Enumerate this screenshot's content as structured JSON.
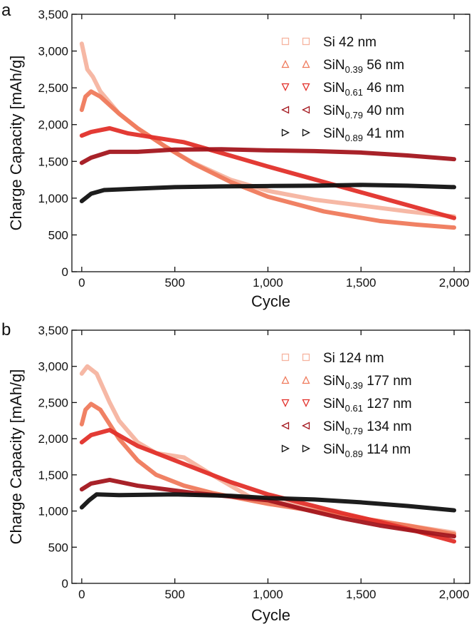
{
  "chart_data": [
    {
      "panel_label": "a",
      "type": "scatter",
      "xlabel": "Cycle",
      "ylabel": "Charge Capacity [mAh/g]",
      "xlim": [
        -53,
        2084
      ],
      "ylim": [
        0,
        3500
      ],
      "xticks": [
        "0",
        "500",
        "1,000",
        "1,500",
        "2,000"
      ],
      "xtick_values": [
        0,
        500,
        1000,
        1500,
        2000
      ],
      "yticks": [
        "0",
        "500",
        "1,000",
        "1,500",
        "2,000",
        "2,500",
        "3,000",
        "3,500"
      ],
      "ytick_values": [
        0,
        500,
        1000,
        1500,
        2000,
        2500,
        3000,
        3500
      ],
      "legend_position": "top-right",
      "series": [
        {
          "name": "Si",
          "sub": "",
          "size": "42 nm",
          "marker": "square",
          "color": "#f6b4a0",
          "x": [
            0,
            30,
            60,
            100,
            200,
            300,
            450,
            600,
            800,
            1000,
            1250,
            1500,
            1750,
            2000
          ],
          "y": [
            3100,
            2750,
            2650,
            2450,
            2150,
            1950,
            1700,
            1480,
            1250,
            1100,
            980,
            900,
            820,
            750
          ]
        },
        {
          "name": "SiN",
          "sub": "0.39",
          "size": "56 nm",
          "marker": "triangle-up",
          "color": "#ef7a5c",
          "x": [
            0,
            20,
            50,
            100,
            200,
            300,
            450,
            600,
            800,
            1000,
            1300,
            1600,
            1800,
            2000
          ],
          "y": [
            2200,
            2380,
            2450,
            2380,
            2150,
            1950,
            1700,
            1470,
            1220,
            1020,
            820,
            690,
            640,
            600
          ]
        },
        {
          "name": "SiN",
          "sub": "0.61",
          "size": "46 nm",
          "marker": "triangle-down",
          "color": "#e2302a",
          "x": [
            0,
            50,
            150,
            250,
            400,
            550,
            700,
            850,
            1000,
            1200,
            1400,
            1600,
            1800,
            2000
          ],
          "y": [
            1850,
            1900,
            1950,
            1880,
            1820,
            1760,
            1650,
            1540,
            1430,
            1290,
            1150,
            1010,
            870,
            730
          ]
        },
        {
          "name": "SiN",
          "sub": "0.79",
          "size": "40 nm",
          "marker": "triangle-left",
          "color": "#a3161d",
          "x": [
            0,
            50,
            150,
            300,
            500,
            750,
            1000,
            1250,
            1500,
            1750,
            2000
          ],
          "y": [
            1480,
            1550,
            1630,
            1630,
            1660,
            1665,
            1650,
            1640,
            1620,
            1580,
            1530
          ]
        },
        {
          "name": "SiN",
          "sub": "0.89",
          "size": "41 nm",
          "marker": "triangle-right",
          "color": "#111111",
          "x": [
            0,
            50,
            120,
            300,
            500,
            750,
            1000,
            1250,
            1500,
            1750,
            2000
          ],
          "y": [
            960,
            1060,
            1110,
            1130,
            1150,
            1160,
            1165,
            1170,
            1180,
            1170,
            1150
          ]
        }
      ]
    },
    {
      "panel_label": "b",
      "type": "scatter",
      "xlabel": "Cycle",
      "ylabel": "Charge Capacity [mAh/g]",
      "xlim": [
        -53,
        2084
      ],
      "ylim": [
        0,
        3500
      ],
      "xticks": [
        "0",
        "500",
        "1,000",
        "1,500",
        "2,000"
      ],
      "xtick_values": [
        0,
        500,
        1000,
        1500,
        2000
      ],
      "yticks": [
        "0",
        "500",
        "1,000",
        "1,500",
        "2,000",
        "2,500",
        "3,000",
        "3,500"
      ],
      "ytick_values": [
        0,
        500,
        1000,
        1500,
        2000,
        2500,
        3000,
        3500
      ],
      "legend_position": "top-right",
      "series": [
        {
          "name": "Si",
          "sub": "",
          "size": "124 nm",
          "marker": "square",
          "color": "#f6b4a0",
          "x": [
            0,
            30,
            80,
            150,
            200,
            300,
            400,
            550,
            700,
            900,
            1200,
            1500,
            1750,
            2000
          ],
          "y": [
            2900,
            3000,
            2900,
            2500,
            2250,
            1950,
            1800,
            1740,
            1500,
            1200,
            1050,
            900,
            800,
            700
          ]
        },
        {
          "name": "SiN",
          "sub": "0.39",
          "size": "177 nm",
          "marker": "triangle-up",
          "color": "#ef7a5c",
          "x": [
            0,
            20,
            50,
            100,
            200,
            300,
            400,
            550,
            700,
            1000,
            1250,
            1500,
            1750,
            2000
          ],
          "y": [
            2200,
            2400,
            2480,
            2400,
            2000,
            1700,
            1500,
            1350,
            1250,
            1100,
            1000,
            900,
            800,
            680
          ]
        },
        {
          "name": "SiN",
          "sub": "0.61",
          "size": "127 nm",
          "marker": "triangle-down",
          "color": "#e2302a",
          "x": [
            0,
            50,
            150,
            300,
            500,
            650,
            800,
            1000,
            1200,
            1400,
            1600,
            1800,
            2000
          ],
          "y": [
            1950,
            2050,
            2120,
            1900,
            1700,
            1550,
            1400,
            1230,
            1100,
            970,
            850,
            720,
            580
          ]
        },
        {
          "name": "SiN",
          "sub": "0.79",
          "size": "134 nm",
          "marker": "triangle-left",
          "color": "#a3161d",
          "x": [
            0,
            50,
            150,
            300,
            600,
            800,
            1000,
            1200,
            1400,
            1600,
            1800,
            2000
          ],
          "y": [
            1300,
            1380,
            1430,
            1350,
            1250,
            1200,
            1150,
            1020,
            900,
            800,
            720,
            650
          ]
        },
        {
          "name": "SiN",
          "sub": "0.89",
          "size": "114 nm",
          "marker": "triangle-right",
          "color": "#111111",
          "x": [
            0,
            40,
            80,
            200,
            500,
            800,
            1000,
            1250,
            1500,
            1750,
            2000
          ],
          "y": [
            1050,
            1150,
            1230,
            1220,
            1230,
            1210,
            1180,
            1160,
            1120,
            1070,
            1010
          ]
        }
      ]
    }
  ]
}
